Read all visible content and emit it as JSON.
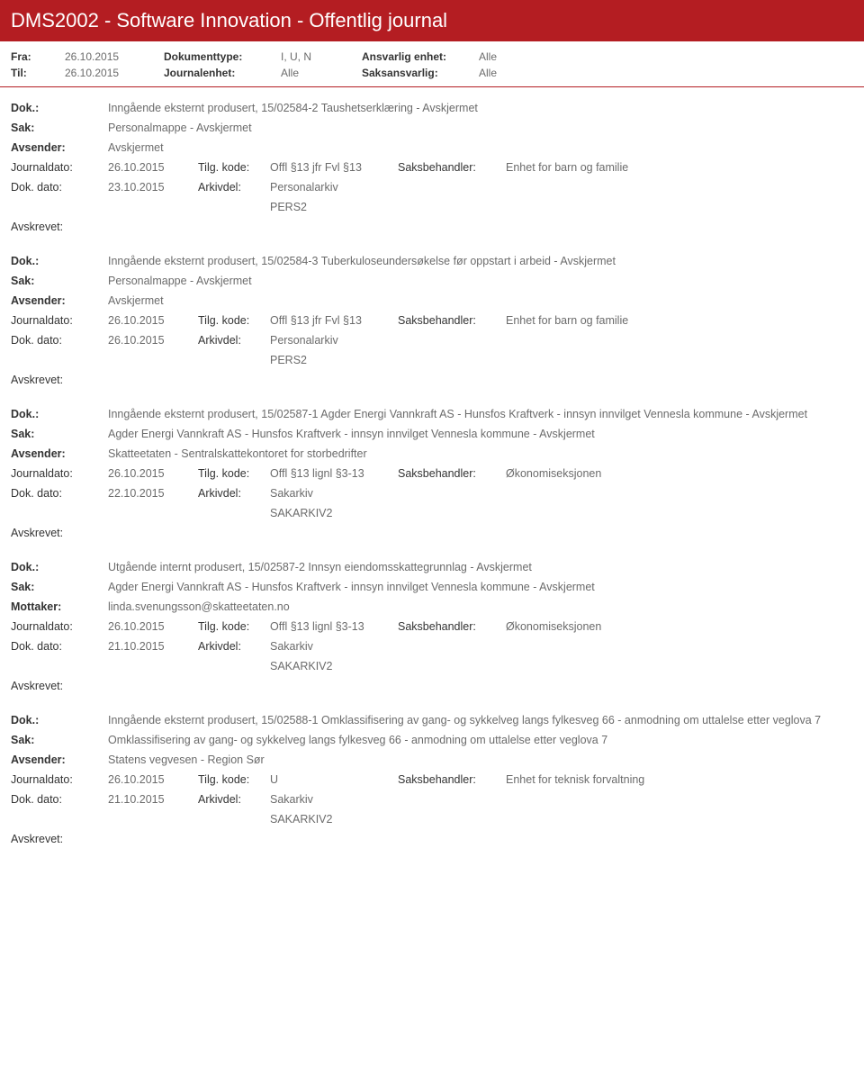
{
  "header": {
    "title": "DMS2002 - Software Innovation - Offentlig journal"
  },
  "meta": {
    "rows": [
      {
        "l1": "Fra:",
        "v1": "26.10.2015",
        "l2": "Dokumenttype:",
        "v2": "I, U, N",
        "l3": "Ansvarlig enhet:",
        "v3": "Alle"
      },
      {
        "l1": "Til:",
        "v1": "26.10.2015",
        "l2": "Journalenhet:",
        "v2": "Alle",
        "l3": "Saksansvarlig:",
        "v3": "Alle"
      }
    ]
  },
  "labels": {
    "dok": "Dok.:",
    "sak": "Sak:",
    "avsender": "Avsender:",
    "mottaker": "Mottaker:",
    "journaldato": "Journaldato:",
    "tilgkode": "Tilg. kode:",
    "saksbehandler": "Saksbehandler:",
    "dokdato": "Dok. dato:",
    "arkivdel": "Arkivdel:",
    "avskrevet": "Avskrevet:"
  },
  "entries": [
    {
      "dok": "Inngående eksternt produsert, 15/02584-2 Taushetserklæring - Avskjermet",
      "sak": "Personalmappe - Avskjermet",
      "partyLabel": "Avsender:",
      "party": "Avskjermet",
      "journaldato": "26.10.2015",
      "tilgkode": "Offl §13 jfr Fvl §13",
      "saksbehandler": "Enhet for barn og familie",
      "dokdato": "23.10.2015",
      "arkivdel": "Personalarkiv",
      "arkivdel2": "PERS2"
    },
    {
      "dok": "Inngående eksternt produsert, 15/02584-3 Tuberkuloseundersøkelse før oppstart i arbeid - Avskjermet",
      "sak": "Personalmappe - Avskjermet",
      "partyLabel": "Avsender:",
      "party": "Avskjermet",
      "journaldato": "26.10.2015",
      "tilgkode": "Offl §13 jfr Fvl §13",
      "saksbehandler": "Enhet for barn og familie",
      "dokdato": "26.10.2015",
      "arkivdel": "Personalarkiv",
      "arkivdel2": "PERS2"
    },
    {
      "dok": "Inngående eksternt produsert, 15/02587-1 Agder Energi Vannkraft AS - Hunsfos Kraftverk - innsyn innvilget Vennesla kommune - Avskjermet",
      "sak": "Agder Energi Vannkraft AS - Hunsfos Kraftverk - innsyn innvilget Vennesla kommune - Avskjermet",
      "partyLabel": "Avsender:",
      "party": "Skatteetaten - Sentralskattekontoret for storbedrifter",
      "journaldato": "26.10.2015",
      "tilgkode": "Offl §13 lignl §3-13",
      "saksbehandler": "Økonomiseksjonen",
      "dokdato": "22.10.2015",
      "arkivdel": "Sakarkiv",
      "arkivdel2": "SAKARKIV2"
    },
    {
      "dok": "Utgående internt produsert, 15/02587-2 Innsyn eiendomsskattegrunnlag - Avskjermet",
      "sak": "Agder Energi Vannkraft AS - Hunsfos Kraftverk - innsyn innvilget Vennesla kommune - Avskjermet",
      "partyLabel": "Mottaker:",
      "party": "linda.svenungsson@skatteetaten.no",
      "journaldato": "26.10.2015",
      "tilgkode": "Offl §13 lignl §3-13",
      "saksbehandler": "Økonomiseksjonen",
      "dokdato": "21.10.2015",
      "arkivdel": "Sakarkiv",
      "arkivdel2": "SAKARKIV2"
    },
    {
      "dok": "Inngående eksternt produsert, 15/02588-1 Omklassifisering av gang- og sykkelveg langs fylkesveg 66 - anmodning om uttalelse etter veglova 7",
      "sak": "Omklassifisering av gang- og sykkelveg langs fylkesveg 66 - anmodning om uttalelse etter veglova 7",
      "partyLabel": "Avsender:",
      "party": "Statens vegvesen - Region Sør",
      "journaldato": "26.10.2015",
      "tilgkode": "U",
      "saksbehandler": "Enhet for teknisk forvaltning",
      "dokdato": "21.10.2015",
      "arkivdel": "Sakarkiv",
      "arkivdel2": "SAKARKIV2"
    }
  ]
}
